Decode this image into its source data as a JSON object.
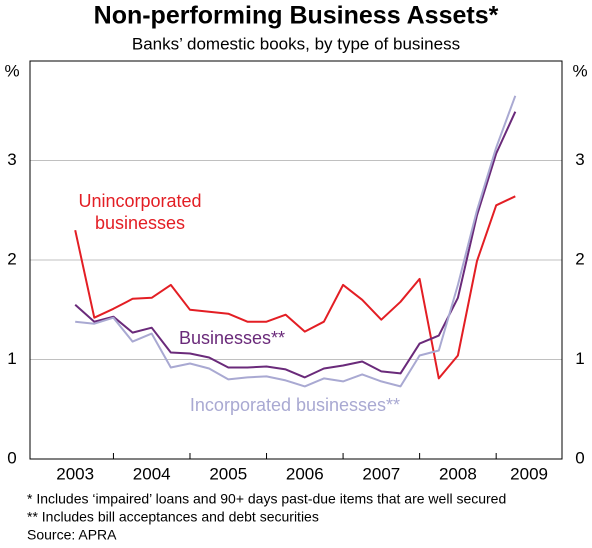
{
  "chart_data": {
    "type": "line",
    "title": "Non-performing Business Assets*",
    "subtitle": "Banks’ domestic books, by type of business",
    "y_label": "%",
    "x": [
      2003.5,
      2003.75,
      2004,
      2004.25,
      2004.5,
      2004.75,
      2005,
      2005.25,
      2005.5,
      2005.75,
      2006,
      2006.25,
      2006.5,
      2006.75,
      2007,
      2007.25,
      2007.5,
      2007.75,
      2008,
      2008.25,
      2008.5,
      2008.75,
      2009,
      2009.25
    ],
    "series": [
      {
        "name": "Unincorporated businesses",
        "color": "#e31e24",
        "values": [
          2.3,
          1.42,
          1.51,
          1.61,
          1.62,
          1.75,
          1.5,
          1.48,
          1.46,
          1.38,
          1.38,
          1.45,
          1.28,
          1.38,
          1.75,
          1.6,
          1.4,
          1.58,
          1.81,
          0.81,
          1.04,
          1.99,
          2.55,
          2.64
        ]
      },
      {
        "name": "Businesses**",
        "color": "#6a2a7a",
        "values": [
          1.55,
          1.38,
          1.43,
          1.27,
          1.32,
          1.07,
          1.06,
          1.02,
          0.92,
          0.92,
          0.93,
          0.9,
          0.82,
          0.91,
          0.94,
          0.98,
          0.88,
          0.86,
          1.16,
          1.24,
          1.62,
          2.45,
          3.07,
          3.49
        ]
      },
      {
        "name": "Incorporated businesses**",
        "color": "#a9a9d2",
        "values": [
          1.38,
          1.36,
          1.42,
          1.18,
          1.26,
          0.92,
          0.96,
          0.91,
          0.8,
          0.82,
          0.83,
          0.79,
          0.73,
          0.81,
          0.78,
          0.85,
          0.78,
          0.73,
          1.04,
          1.09,
          1.75,
          2.5,
          3.13,
          3.65
        ]
      }
    ],
    "xlim": [
      2002.91,
      2009.86
    ],
    "xticks": [
      2003,
      2004,
      2005,
      2006,
      2007,
      2008,
      2009
    ],
    "ylim": [
      0,
      4
    ],
    "yticks": [
      0,
      1,
      2,
      3
    ],
    "grid": true,
    "notes": [
      "*  Includes ‘impaired’ loans and 90+ days past-due items that are well secured",
      "** Includes bill acceptances and debt securities"
    ],
    "source": "Source: APRA"
  }
}
